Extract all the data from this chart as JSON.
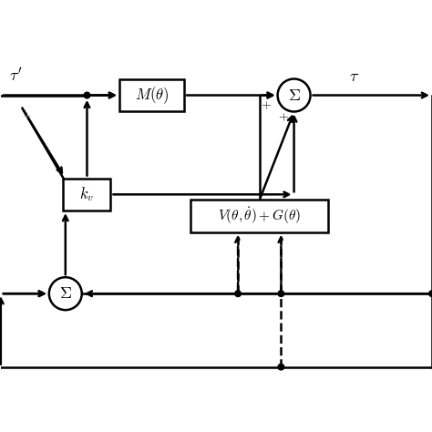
{
  "bg_color": "#ffffff",
  "line_color": "#000000",
  "text_color": "#000000",
  "gray_color": "#888888",
  "fig_width": 4.74,
  "fig_height": 4.74,
  "dpi": 100
}
